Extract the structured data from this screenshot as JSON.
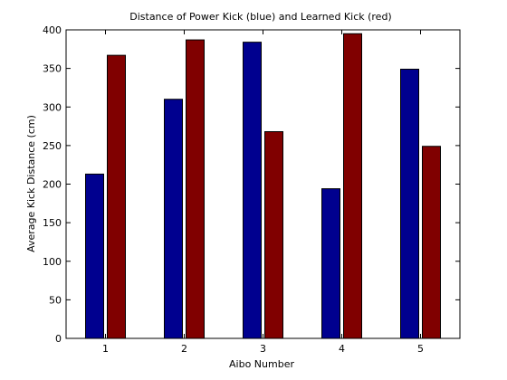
{
  "chart_data": {
    "type": "bar",
    "title": "Distance of Power Kick (blue) and Learned Kick (red)",
    "xlabel": "Aibo Number",
    "ylabel": "Average Kick Distance (cm)",
    "categories": [
      "1",
      "2",
      "3",
      "4",
      "5"
    ],
    "ylim": [
      0,
      400
    ],
    "yticks": [
      0,
      50,
      100,
      150,
      200,
      250,
      300,
      350,
      400
    ],
    "grid": false,
    "series": [
      {
        "color": "#00008f",
        "values": [
          213,
          310,
          384,
          194,
          349
        ]
      },
      {
        "color": "#800000",
        "values": [
          367,
          387,
          268,
          395,
          249
        ]
      }
    ]
  }
}
